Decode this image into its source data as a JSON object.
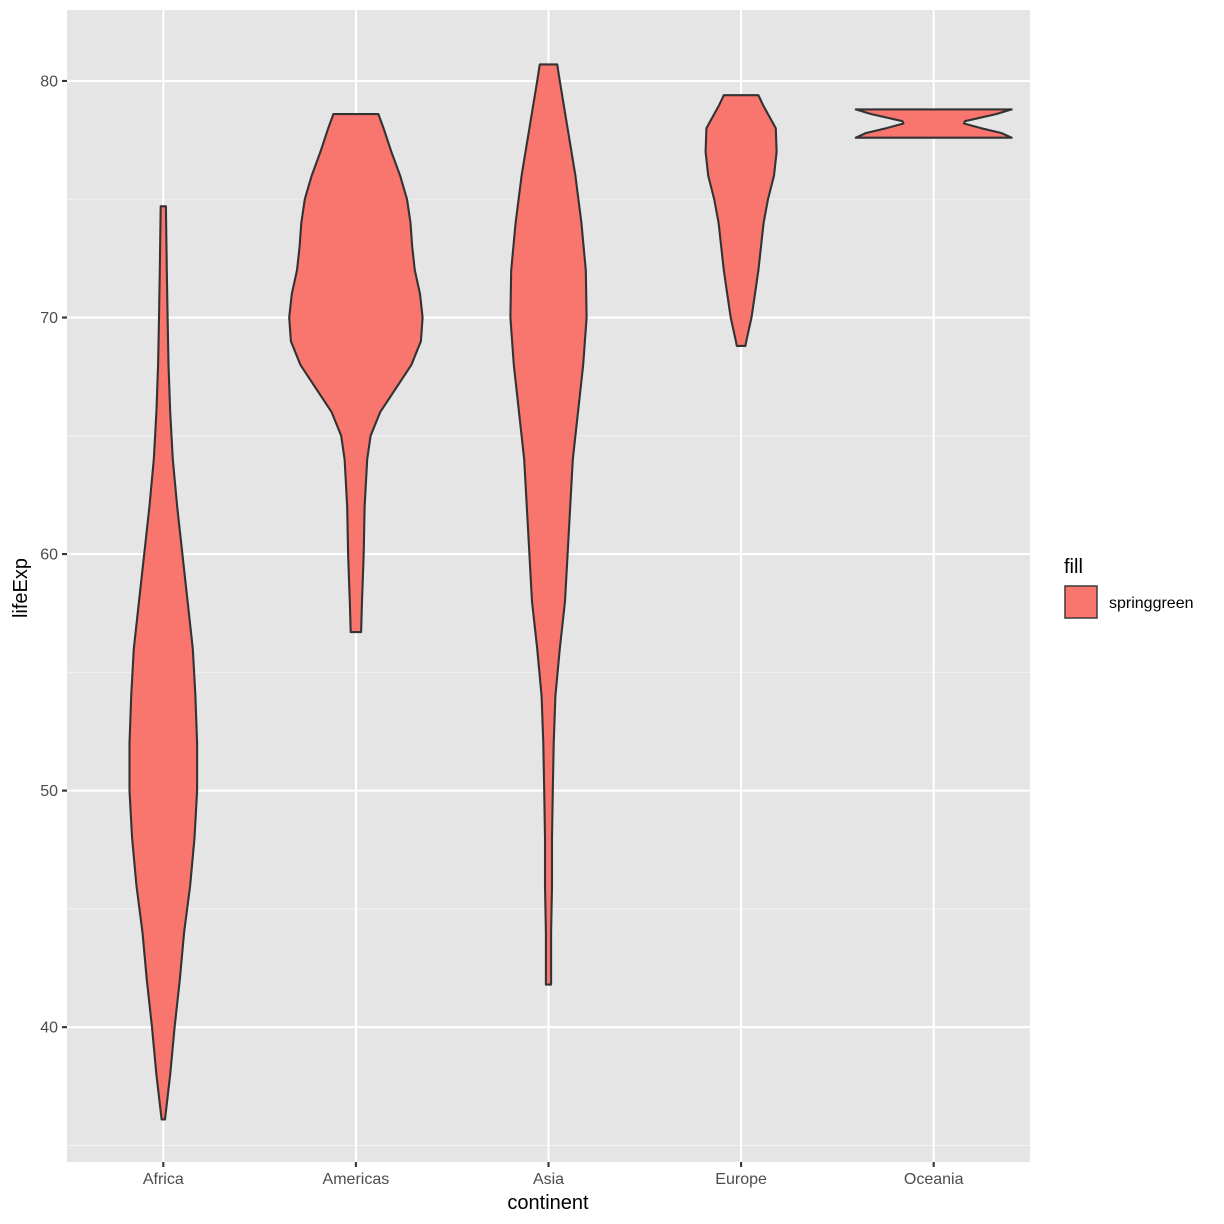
{
  "chart_data": {
    "type": "violin",
    "xlabel": "continent",
    "ylabel": "lifeExp",
    "categories": [
      "Africa",
      "Americas",
      "Asia",
      "Europe",
      "Oceania"
    ],
    "ylim": [
      34.3,
      83.0
    ],
    "y_ticks": [
      40,
      50,
      60,
      70,
      80
    ],
    "grid": true,
    "fill_color": "#F8766D",
    "outline_color": "#333333",
    "panel_background": "#E5E5E5",
    "legend": {
      "title": "fill",
      "placement": "right",
      "entries": [
        {
          "label": "springgreen",
          "color": "#F8766D"
        }
      ]
    },
    "series": [
      {
        "category": "Africa",
        "min": 36.1,
        "max": 74.7,
        "profile": [
          [
            36.1,
            0.02
          ],
          [
            38,
            0.08
          ],
          [
            40,
            0.13
          ],
          [
            42,
            0.19
          ],
          [
            44,
            0.24
          ],
          [
            46,
            0.31
          ],
          [
            48,
            0.36
          ],
          [
            50,
            0.39
          ],
          [
            52,
            0.39
          ],
          [
            54,
            0.37
          ],
          [
            56,
            0.34
          ],
          [
            58,
            0.28
          ],
          [
            60,
            0.22
          ],
          [
            62,
            0.16
          ],
          [
            64,
            0.11
          ],
          [
            66,
            0.08
          ],
          [
            68,
            0.06
          ],
          [
            70,
            0.05
          ],
          [
            72,
            0.04
          ],
          [
            74.7,
            0.03
          ]
        ]
      },
      {
        "category": "Americas",
        "min": 56.7,
        "max": 78.6,
        "profile": [
          [
            56.7,
            0.06
          ],
          [
            58,
            0.07
          ],
          [
            60,
            0.09
          ],
          [
            62,
            0.1
          ],
          [
            64,
            0.13
          ],
          [
            65,
            0.17
          ],
          [
            66,
            0.28
          ],
          [
            67,
            0.46
          ],
          [
            68,
            0.64
          ],
          [
            69,
            0.75
          ],
          [
            70,
            0.77
          ],
          [
            71,
            0.74
          ],
          [
            72,
            0.68
          ],
          [
            73,
            0.65
          ],
          [
            74,
            0.63
          ],
          [
            75,
            0.59
          ],
          [
            76,
            0.51
          ],
          [
            77,
            0.41
          ],
          [
            78,
            0.32
          ],
          [
            78.6,
            0.26
          ]
        ]
      },
      {
        "category": "Asia",
        "min": 41.8,
        "max": 80.7,
        "profile": [
          [
            41.8,
            0.03
          ],
          [
            44,
            0.03
          ],
          [
            46,
            0.04
          ],
          [
            48,
            0.04
          ],
          [
            50,
            0.05
          ],
          [
            52,
            0.06
          ],
          [
            54,
            0.08
          ],
          [
            56,
            0.13
          ],
          [
            58,
            0.19
          ],
          [
            60,
            0.22
          ],
          [
            62,
            0.25
          ],
          [
            64,
            0.28
          ],
          [
            66,
            0.34
          ],
          [
            68,
            0.4
          ],
          [
            70,
            0.44
          ],
          [
            72,
            0.43
          ],
          [
            74,
            0.38
          ],
          [
            76,
            0.31
          ],
          [
            78,
            0.22
          ],
          [
            80,
            0.13
          ],
          [
            80.7,
            0.1
          ]
        ]
      },
      {
        "category": "Europe",
        "min": 68.8,
        "max": 79.4,
        "profile": [
          [
            68.8,
            0.05
          ],
          [
            69,
            0.06
          ],
          [
            70,
            0.12
          ],
          [
            71,
            0.16
          ],
          [
            72,
            0.2
          ],
          [
            73,
            0.23
          ],
          [
            74,
            0.26
          ],
          [
            75,
            0.31
          ],
          [
            76,
            0.38
          ],
          [
            77,
            0.41
          ],
          [
            78,
            0.4
          ],
          [
            79,
            0.25
          ],
          [
            79.4,
            0.2
          ]
        ]
      },
      {
        "category": "Oceania",
        "min": 77.6,
        "max": 78.8,
        "profile": [
          [
            77.6,
            0.9
          ],
          [
            77.8,
            0.78
          ],
          [
            78.0,
            0.55
          ],
          [
            78.2,
            0.35
          ],
          [
            78.3,
            0.36
          ],
          [
            78.4,
            0.48
          ],
          [
            78.6,
            0.72
          ],
          [
            78.8,
            0.9
          ]
        ]
      }
    ]
  }
}
